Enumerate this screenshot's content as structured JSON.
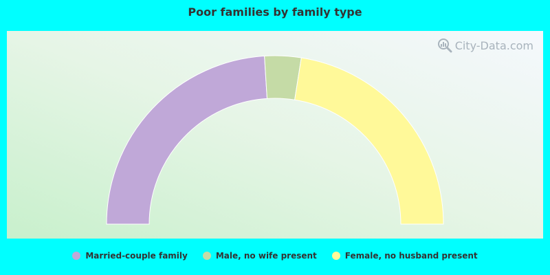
{
  "chart_data": {
    "type": "pie",
    "variant": "half-donut",
    "title": "Poor families by family type",
    "categories": [
      "Married-couple family",
      "Male, no wife present",
      "Female, no husband present"
    ],
    "values": [
      48,
      7,
      45
    ],
    "colors": [
      "#c0a8d8",
      "#c5dba6",
      "#fff999"
    ],
    "legend": "bottom"
  },
  "watermark": {
    "text": "City-Data.com",
    "icon": "magnifier-chart-icon"
  },
  "colors": {
    "background": "#00ffff",
    "title": "#333333",
    "legend_text": "#333333",
    "slice_border": "#ffffff"
  }
}
